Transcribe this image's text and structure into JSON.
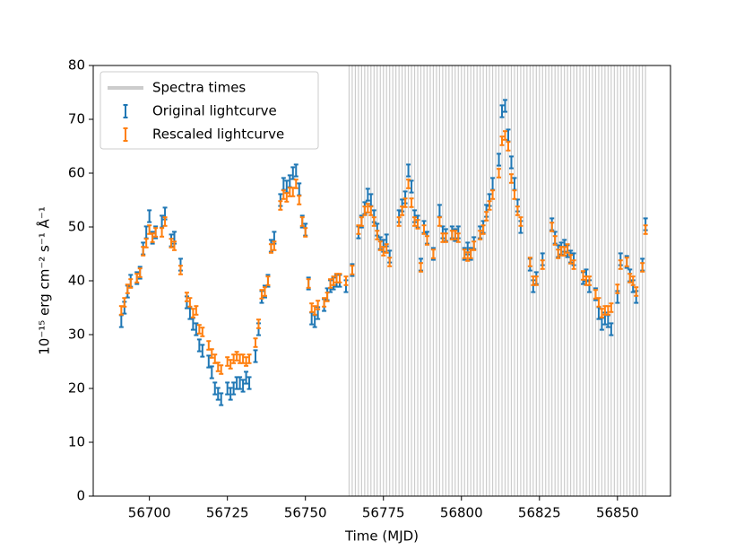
{
  "chart_data": {
    "type": "errorbar",
    "xlabel": "Time (MJD)",
    "ylabel": "10⁻¹⁵ erg cm⁻² s⁻¹ Å⁻¹",
    "xlim": [
      56682,
      56867
    ],
    "ylim": [
      0,
      80
    ],
    "xticks": [
      56700,
      56725,
      56750,
      56775,
      56800,
      56825,
      56850
    ],
    "yticks": [
      0,
      10,
      20,
      30,
      40,
      50,
      60,
      70,
      80
    ],
    "legend": "upper left",
    "vlines": {
      "name": "Spectra times",
      "color": "#cccccc",
      "x": [
        56764,
        56765,
        56766,
        56767,
        56768,
        56769,
        56770,
        56771,
        56772,
        56773,
        56774,
        56775,
        56776,
        56777,
        56778,
        56779,
        56780,
        56781,
        56782,
        56783,
        56784,
        56785,
        56786,
        56787,
        56788,
        56789,
        56790,
        56791,
        56792,
        56793,
        56794,
        56795,
        56796,
        56797,
        56798,
        56799,
        56800,
        56801,
        56802,
        56803,
        56804,
        56805,
        56806,
        56807,
        56808,
        56809,
        56810,
        56811,
        56812,
        56813,
        56814,
        56815,
        56816,
        56817,
        56818,
        56819,
        56820,
        56821,
        56822,
        56823,
        56824,
        56825,
        56826,
        56827,
        56828,
        56829,
        56830,
        56831,
        56832,
        56833,
        56834,
        56835,
        56836,
        56837,
        56838,
        56839,
        56840,
        56841,
        56842,
        56843,
        56844,
        56845,
        56846,
        56847,
        56848,
        56849,
        56850,
        56851,
        56852,
        56853,
        56854,
        56855,
        56856,
        56857,
        56858,
        56859
      ]
    },
    "x": [
      56691,
      56692,
      56693,
      56694,
      56696,
      56697,
      56698,
      56699,
      56700,
      56701,
      56702,
      56704,
      56705,
      56707,
      56708,
      56710,
      56712,
      56713,
      56714,
      56715,
      56716,
      56717,
      56719,
      56720,
      56721,
      56722,
      56723,
      56725,
      56726,
      56727,
      56728,
      56729,
      56730,
      56731,
      56732,
      56734,
      56735,
      56736,
      56737,
      56738,
      56739,
      56740,
      56742,
      56743,
      56744,
      56745,
      56746,
      56747,
      56748,
      56749,
      56750,
      56751,
      56752,
      56753,
      56754,
      56756,
      56757,
      56758,
      56759,
      56760,
      56761,
      56763,
      56765,
      56767,
      56768,
      56769,
      56770,
      56771,
      56772,
      56773,
      56774,
      56775,
      56776,
      56777,
      56780,
      56781,
      56782,
      56783,
      56784,
      56785,
      56786,
      56787,
      56788,
      56789,
      56791,
      56793,
      56794,
      56795,
      56797,
      56798,
      56799,
      56801,
      56802,
      56803,
      56804,
      56806,
      56807,
      56808,
      56809,
      56810,
      56812,
      56813,
      56814,
      56815,
      56816,
      56817,
      56818,
      56819,
      56822,
      56823,
      56824,
      56826,
      56829,
      56830,
      56831,
      56832,
      56833,
      56834,
      56835,
      56836,
      56839,
      56840,
      56841,
      56843,
      56844,
      56845,
      56846,
      56847,
      56848,
      56850,
      56851,
      56853,
      56854,
      56855,
      56856,
      56858,
      56859
    ],
    "series": [
      {
        "name": "Original lightcurve",
        "color": "#1f77b4",
        "error": 1.1,
        "values": [
          32.5,
          35,
          38,
          40,
          40.5,
          41.5,
          46,
          49,
          52,
          48,
          49,
          51,
          52.5,
          47.5,
          48,
          43,
          36,
          34,
          32,
          31,
          28,
          27,
          25,
          23,
          20,
          19,
          18,
          20,
          19,
          20,
          21,
          21,
          20.5,
          22,
          21,
          26,
          31,
          37,
          38,
          40,
          46.5,
          48,
          55,
          58,
          57.5,
          58.5,
          60,
          60.5,
          57,
          51,
          49.5,
          39.5,
          33,
          32.5,
          34,
          35.5,
          37.5,
          39,
          39.5,
          40,
          40,
          39,
          42,
          49,
          51,
          53.5,
          56,
          55,
          52,
          49.5,
          47,
          46.5,
          47.5,
          44.5,
          52,
          54,
          55.5,
          60.5,
          57.5,
          52,
          51,
          43,
          50,
          48,
          45,
          53,
          49,
          48.5,
          49,
          48.5,
          49,
          45,
          46,
          45,
          47,
          49,
          50,
          53,
          55,
          58,
          62.5,
          71.5,
          72.5,
          67,
          62,
          58,
          54,
          50,
          43,
          39,
          40.5,
          44,
          50.5,
          48,
          45.5,
          46,
          46.5,
          45.5,
          44.5,
          44,
          40.5,
          41,
          39,
          37.5,
          34,
          32,
          33,
          32.5,
          31,
          37,
          44,
          43.5,
          41,
          39,
          37,
          43,
          50.5
        ]
      },
      {
        "name": "Rescaled lightcurve",
        "color": "#ff7f0e",
        "error": 0.8,
        "values": [
          34.5,
          36,
          38.5,
          39.5,
          40.5,
          41.5,
          45.5,
          47,
          49.5,
          48,
          49,
          49,
          51,
          47,
          46.5,
          42,
          37,
          36,
          34,
          34.5,
          31,
          30.5,
          28,
          26.5,
          25.5,
          24,
          23.5,
          25,
          24.5,
          25.5,
          26,
          25.5,
          25.5,
          25,
          25.5,
          28.5,
          32,
          37.5,
          38,
          40,
          46,
          46.5,
          54,
          56,
          55.5,
          56.5,
          56.5,
          58,
          55,
          51,
          49,
          39.5,
          35,
          34.5,
          35.5,
          36,
          37,
          39.5,
          40,
          40.5,
          40.5,
          40,
          42,
          49.5,
          51,
          53,
          53.5,
          53,
          51,
          48.5,
          46.5,
          45.5,
          46,
          43.5,
          51,
          53,
          54.5,
          58,
          54.5,
          51,
          50.5,
          42.5,
          49.5,
          47.5,
          45,
          51,
          48,
          48,
          48.5,
          48.5,
          48,
          45,
          44.5,
          45,
          46.5,
          48.5,
          49.5,
          52,
          54,
          56,
          60,
          66,
          67,
          65,
          59,
          56,
          53,
          51,
          43.5,
          40,
          40,
          43,
          50,
          47.5,
          45,
          45.5,
          45.5,
          46,
          44,
          43,
          41,
          40,
          40,
          37.5,
          36,
          34,
          34.5,
          34.5,
          35,
          38.5,
          43,
          43.5,
          40.5,
          40,
          38,
          42.5,
          49.5
        ]
      }
    ]
  }
}
